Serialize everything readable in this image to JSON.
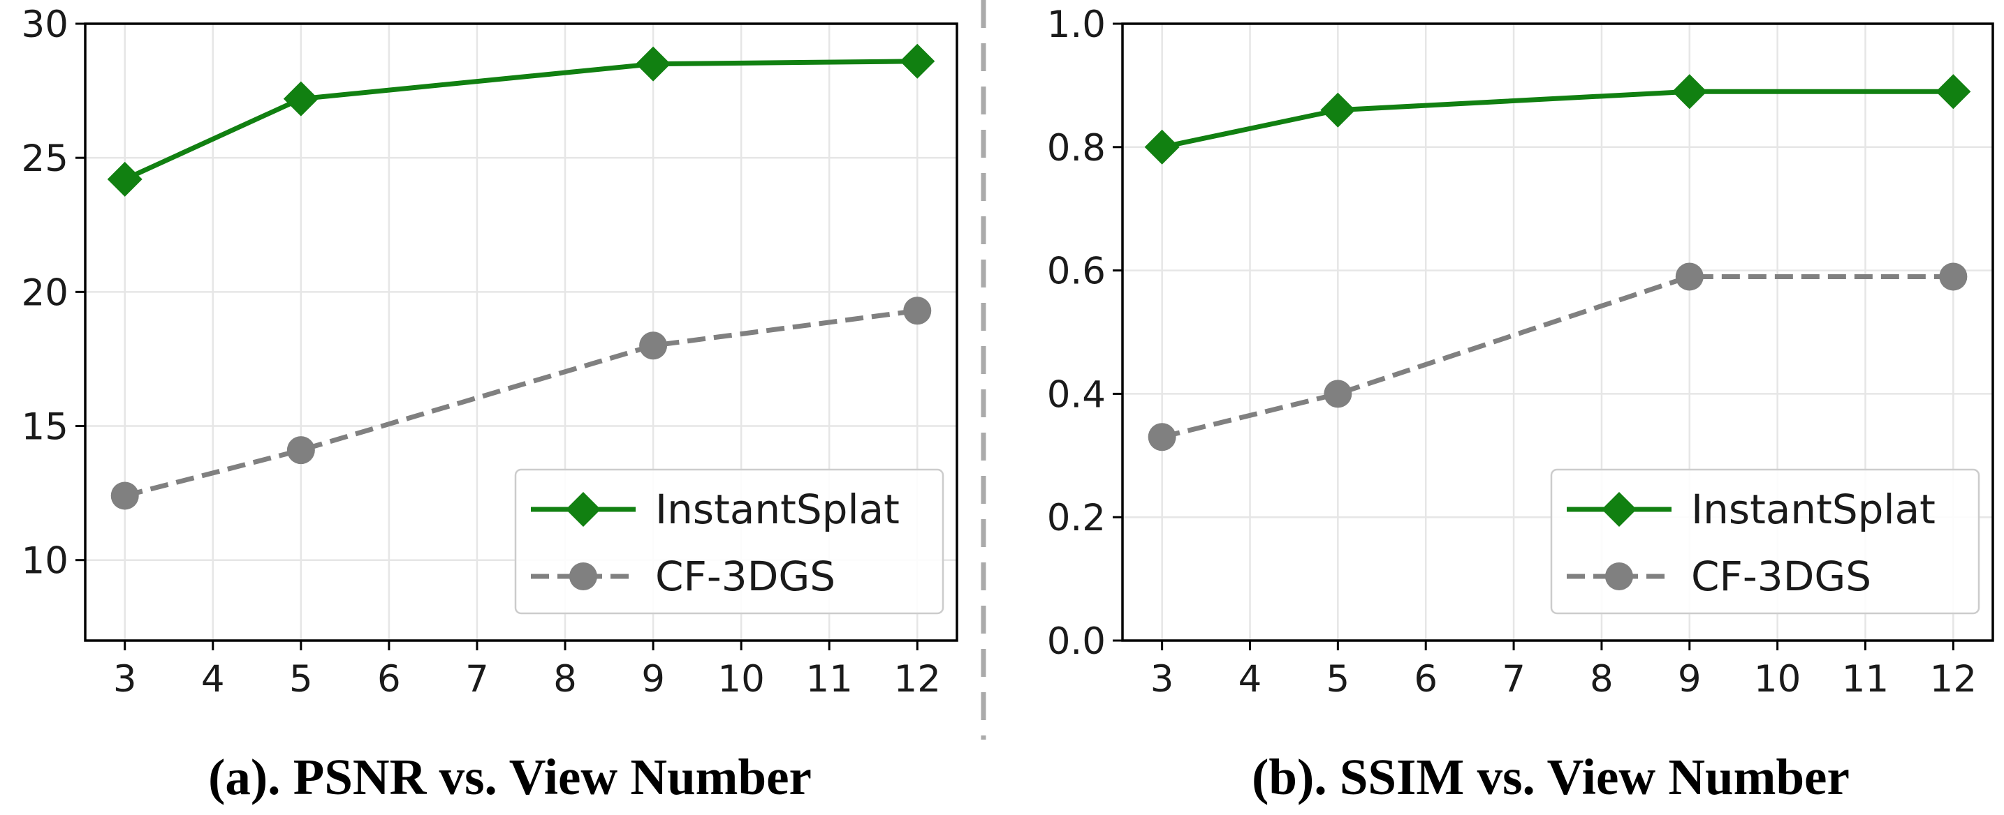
{
  "chart_data": [
    {
      "type": "line",
      "title": "(a). PSNR vs. View Number",
      "xlabel": "",
      "ylabel": "",
      "xlim": [
        2.55,
        12.45
      ],
      "ylim": [
        7,
        30
      ],
      "xticks": [
        3,
        4,
        5,
        6,
        7,
        8,
        9,
        10,
        11,
        12
      ],
      "yticks": [
        10,
        15,
        20,
        25,
        30
      ],
      "ytick_labels": [
        "10",
        "15",
        "20",
        "25",
        "30"
      ],
      "grid": true,
      "legend_position": "lower-right",
      "series": [
        {
          "name": "InstantSplat",
          "x": [
            3,
            5,
            9,
            12
          ],
          "y": [
            24.2,
            27.2,
            28.5,
            28.6
          ],
          "color": "#118011",
          "linestyle": "solid",
          "marker": "diamond"
        },
        {
          "name": "CF-3DGS",
          "x": [
            3,
            5,
            9,
            12
          ],
          "y": [
            12.4,
            14.1,
            18.0,
            19.3
          ],
          "color": "#808080",
          "linestyle": "dashed",
          "marker": "circle"
        }
      ]
    },
    {
      "type": "line",
      "title": "(b). SSIM vs. View Number",
      "xlabel": "",
      "ylabel": "",
      "xlim": [
        2.55,
        12.45
      ],
      "ylim": [
        0.0,
        1.0
      ],
      "xticks": [
        3,
        4,
        5,
        6,
        7,
        8,
        9,
        10,
        11,
        12
      ],
      "yticks": [
        0.0,
        0.2,
        0.4,
        0.6,
        0.8,
        1.0
      ],
      "ytick_labels": [
        "0.0",
        "0.2",
        "0.4",
        "0.6",
        "0.8",
        "1.0"
      ],
      "grid": true,
      "legend_position": "lower-right",
      "series": [
        {
          "name": "InstantSplat",
          "x": [
            3,
            5,
            9,
            12
          ],
          "y": [
            0.8,
            0.86,
            0.89,
            0.89
          ],
          "color": "#118011",
          "linestyle": "solid",
          "marker": "diamond"
        },
        {
          "name": "CF-3DGS",
          "x": [
            3,
            5,
            9,
            12
          ],
          "y": [
            0.33,
            0.4,
            0.59,
            0.59
          ],
          "color": "#808080",
          "linestyle": "dashed",
          "marker": "circle"
        }
      ]
    }
  ]
}
